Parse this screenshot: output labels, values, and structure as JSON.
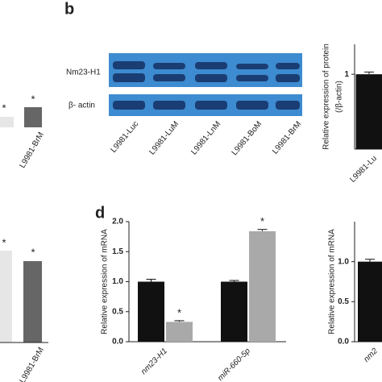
{
  "panels": {
    "b": "b",
    "d": "d"
  },
  "left_panels": [
    {
      "asterisks": [
        "*",
        "*"
      ],
      "label": "L9981-BrM"
    },
    {
      "asterisks": [
        "*",
        "*"
      ],
      "label": "L9981-BrM"
    }
  ],
  "blot": {
    "rows": [
      "Nm23-H1",
      "β- actin"
    ],
    "lanes": [
      "L9981-Luc",
      "L9981-LuM",
      "L9981-LnM",
      "L9981-BoM",
      "L9981-BrM"
    ]
  },
  "chart_data": [
    {
      "type": "bar",
      "ylabel": "Relative expression  of mRNA",
      "categories": [
        "nm23-H1",
        "miR-660-5p"
      ],
      "series": [
        {
          "color": "#111111",
          "values": [
            1.0,
            1.0
          ],
          "errors": [
            0.04,
            0.02
          ]
        },
        {
          "color": "#a9a9a9",
          "values": [
            0.33,
            1.84
          ],
          "errors": [
            0.02,
            0.03
          ]
        }
      ],
      "annotations": [
        "*",
        "*"
      ],
      "ylim": [
        0,
        2.0
      ],
      "yticks": [
        {
          "value": 0,
          "label": "0.0"
        },
        {
          "value": 0.5,
          "label": "0.5"
        },
        {
          "value": 1.0,
          "label": "1.0"
        },
        {
          "value": 1.5,
          "label": "1.5"
        },
        {
          "value": 2.0,
          "label": "2.0"
        }
      ]
    },
    {
      "type": "bar",
      "ylabel": "Relative expression  of mRNA",
      "categories": [
        "nm2"
      ],
      "series": [
        {
          "color": "#111111",
          "values": [
            1.0
          ],
          "errors": [
            0.03
          ]
        }
      ],
      "ylim": [
        0,
        1.5
      ],
      "yticks": [
        {
          "value": 0,
          "label": "0.0"
        },
        {
          "value": 0.5,
          "label": "0.5"
        },
        {
          "value": 1.0,
          "label": "1.0"
        }
      ]
    },
    {
      "type": "bar",
      "ylabel": [
        "Relative expression of protein",
        "(/β-actin)"
      ],
      "categories": [
        "L9981-Lu"
      ],
      "series": [
        {
          "color": "#111111",
          "values": [
            1.0
          ],
          "errors": [
            0.03
          ]
        }
      ],
      "ylim": [
        0,
        1.4
      ],
      "yticks": [
        1
      ]
    }
  ]
}
